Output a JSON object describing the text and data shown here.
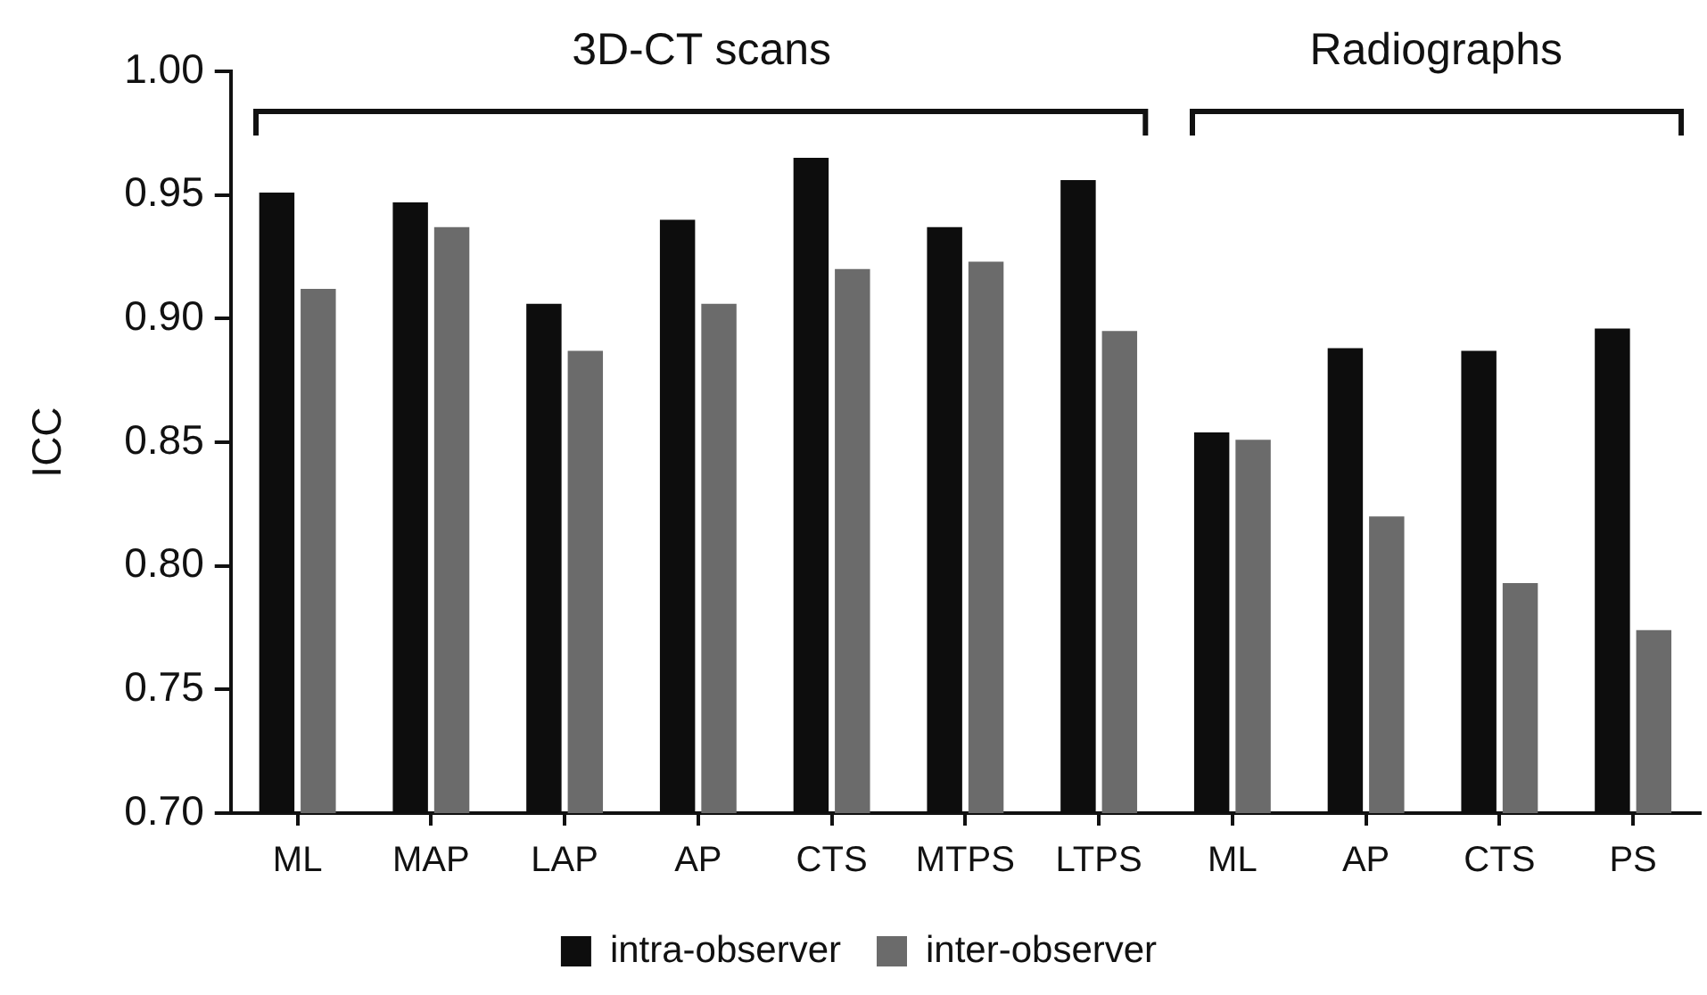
{
  "chart_data": {
    "type": "bar",
    "ylabel": "ICC",
    "categories": [
      "ML",
      "MAP",
      "LAP",
      "AP",
      "CTS",
      "MTPS",
      "LTPS",
      "ML",
      "AP",
      "CTS",
      "PS"
    ],
    "series": [
      {
        "name": "intra-observer",
        "color": "#0d0d0d",
        "values": [
          0.951,
          0.947,
          0.906,
          0.94,
          0.965,
          0.937,
          0.956,
          0.854,
          0.888,
          0.887,
          0.896
        ]
      },
      {
        "name": "inter-observer",
        "color": "#6b6b6b",
        "values": [
          0.912,
          0.937,
          0.887,
          0.906,
          0.92,
          0.923,
          0.895,
          0.851,
          0.82,
          0.793,
          0.774
        ]
      }
    ],
    "ylim": [
      0.7,
      1.0
    ],
    "yticks": [
      {
        "value": 0.7,
        "label": "0.70"
      },
      {
        "value": 0.75,
        "label": "0.75"
      },
      {
        "value": 0.8,
        "label": "0.80"
      },
      {
        "value": 0.85,
        "label": "0.85"
      },
      {
        "value": 0.9,
        "label": "0.90"
      },
      {
        "value": 0.95,
        "label": "0.95"
      },
      {
        "value": 1.0,
        "label": "1.00"
      }
    ],
    "grid": false,
    "legend": "bottom",
    "annotations": [
      "3D-CT scans",
      "Radiographs"
    ]
  }
}
